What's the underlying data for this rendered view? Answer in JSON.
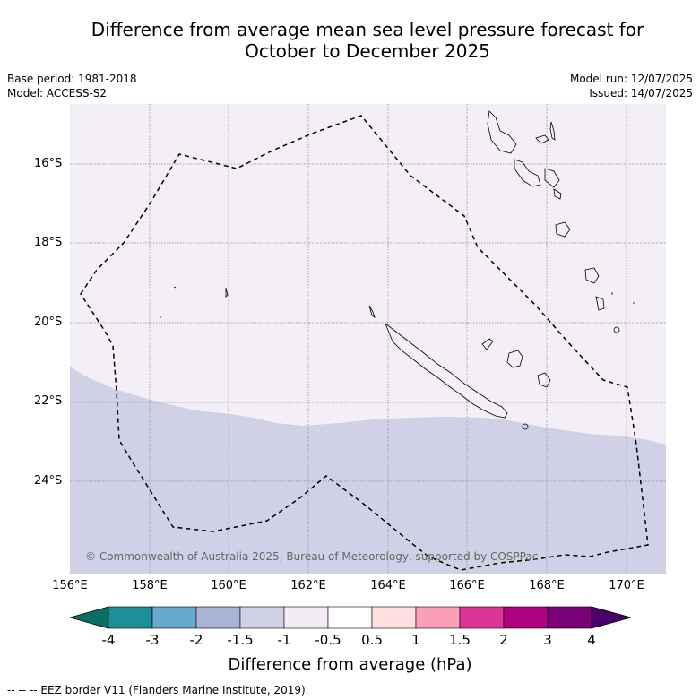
{
  "title": {
    "line1": "Difference from average mean sea level pressure forecast for",
    "line2": "October to December 2025"
  },
  "meta": {
    "base_period": "Base period: 1981-2018",
    "model": "Model: ACCESS-S2",
    "model_run": "Model run: 12/07/2025",
    "issued": "Issued: 14/07/2025"
  },
  "axes": {
    "lat_labels": [
      "16°S",
      "18°S",
      "20°S",
      "22°S",
      "24°S"
    ],
    "lon_labels": [
      "156°E",
      "158°E",
      "160°E",
      "162°E",
      "164°E",
      "166°E",
      "168°E",
      "170°E"
    ]
  },
  "copyright": "© Commonwealth of Australia 2025, Bureau of Meteorology, supported by COSPPac",
  "colorbar": {
    "title": "Difference from average (hPa)",
    "labels": [
      "-4",
      "-3",
      "-2",
      "-1.5",
      "-1",
      "-0.5",
      "0.5",
      "1",
      "1.5",
      "2",
      "3",
      "4"
    ],
    "colors": [
      "#0b6e63",
      "#1b9197",
      "#67a9cf",
      "#aab3d3",
      "#d0d1e6",
      "#f3ecf5",
      "#ffffff",
      "#fde0dd",
      "#fa9fb5",
      "#dd3497",
      "#ae017e",
      "#7a0177",
      "#49006a"
    ]
  },
  "map_colors": {
    "upper_region": "#f4eef6",
    "lower_region": "#d0d1e6"
  },
  "footer": "--  --  -- EEZ border V11 (Flanders Marine Institute, 2019)."
}
